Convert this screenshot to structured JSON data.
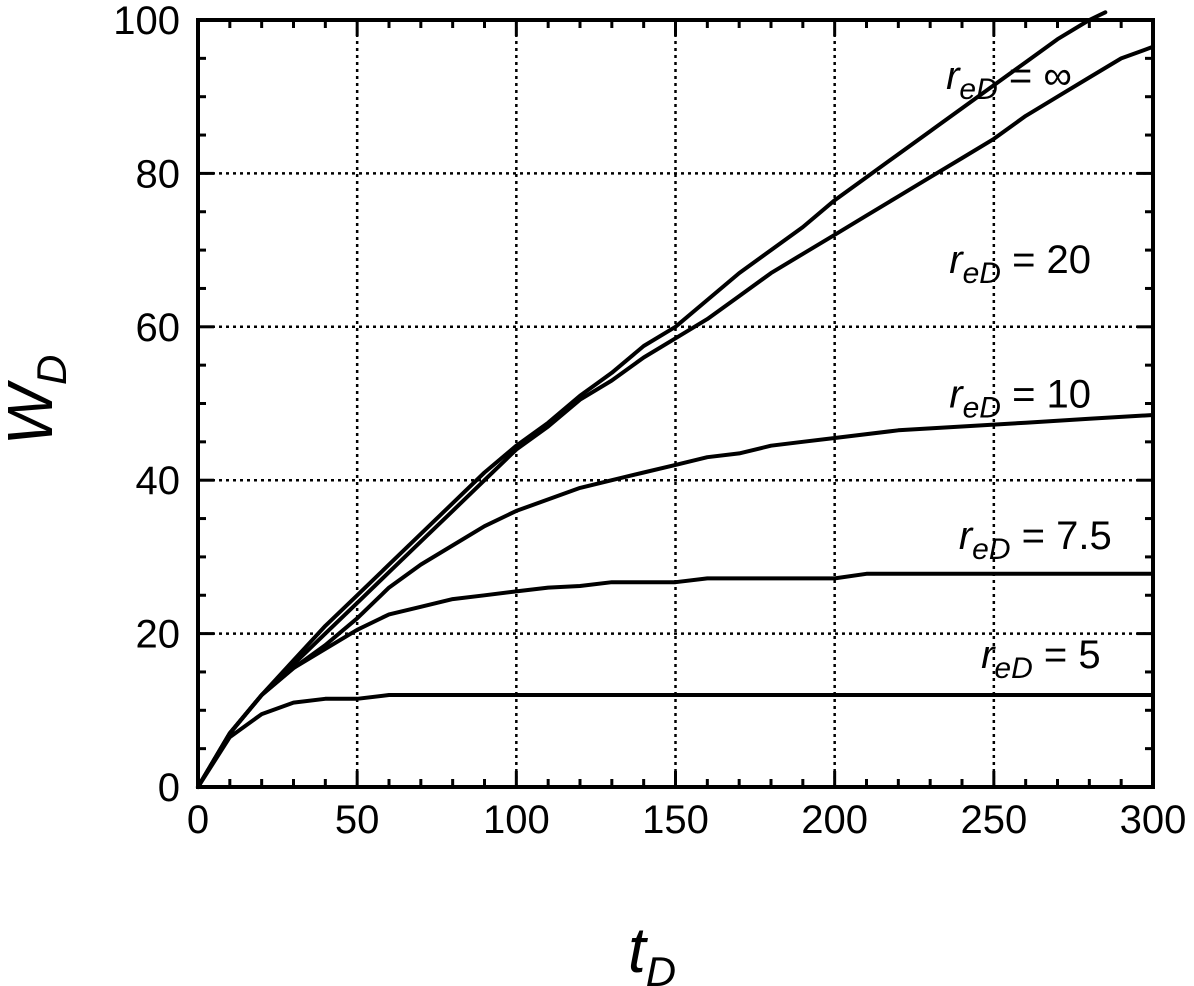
{
  "chart_data": {
    "type": "line",
    "xlabel": {
      "main": "t",
      "sub": "D"
    },
    "ylabel": {
      "main": "W",
      "sub": "D"
    },
    "xlim": [
      0,
      300
    ],
    "ylim": [
      0,
      100
    ],
    "xticks": [
      0,
      50,
      100,
      150,
      200,
      250,
      300
    ],
    "yticks": [
      0,
      20,
      40,
      60,
      80,
      100
    ],
    "grid": true,
    "line_color": "#000000",
    "series": [
      {
        "name": "r_eD = ∞",
        "label": {
          "var": "r",
          "sub": "eD",
          "op": " = ",
          "val": "∞"
        },
        "x": [
          0,
          10,
          20,
          30,
          40,
          50,
          60,
          70,
          80,
          90,
          100,
          110,
          120,
          130,
          140,
          150,
          160,
          170,
          180,
          190,
          200,
          210,
          220,
          230,
          240,
          250,
          260,
          270,
          280,
          285
        ],
        "y": [
          0,
          7,
          12,
          16.5,
          21,
          25,
          29,
          33,
          37,
          41,
          44.5,
          47.5,
          51,
          54,
          57.5,
          60,
          63.5,
          67,
          70,
          73,
          76.5,
          79.5,
          82.5,
          85.5,
          88.5,
          91.5,
          94.5,
          97.5,
          100,
          101
        ]
      },
      {
        "name": "r_eD = 20",
        "label": {
          "var": "r",
          "sub": "eD",
          "op": " = ",
          "val": "20"
        },
        "x": [
          0,
          10,
          20,
          30,
          40,
          50,
          60,
          70,
          80,
          90,
          100,
          110,
          120,
          130,
          140,
          150,
          160,
          170,
          180,
          190,
          200,
          210,
          220,
          230,
          240,
          250,
          260,
          270,
          280,
          290,
          300
        ],
        "y": [
          0,
          7,
          12,
          16,
          20,
          24,
          28,
          32,
          36,
          40,
          44,
          47,
          50.5,
          53,
          56,
          58.5,
          61,
          64,
          67,
          69.5,
          72,
          74.5,
          77,
          79.5,
          82,
          84.5,
          87.5,
          90,
          92.5,
          95,
          96.5
        ]
      },
      {
        "name": "r_eD = 10",
        "label": {
          "var": "r",
          "sub": "eD",
          "op": " = ",
          "val": "10"
        },
        "x": [
          0,
          10,
          20,
          30,
          40,
          50,
          60,
          70,
          80,
          90,
          100,
          110,
          120,
          130,
          140,
          150,
          160,
          170,
          180,
          190,
          200,
          220,
          240,
          260,
          280,
          300
        ],
        "y": [
          0,
          7,
          12,
          15.5,
          18.5,
          22,
          26,
          29,
          31.5,
          34,
          36,
          37.5,
          39,
          40,
          41,
          42,
          43,
          43.5,
          44.5,
          45,
          45.5,
          46.5,
          47,
          47.5,
          48,
          48.5
        ]
      },
      {
        "name": "r_eD = 7.5",
        "label": {
          "var": "r",
          "sub": "eD",
          "op": " = ",
          "val": "7.5"
        },
        "x": [
          0,
          10,
          20,
          30,
          40,
          50,
          60,
          70,
          80,
          90,
          100,
          110,
          120,
          130,
          150,
          160,
          200,
          210,
          300
        ],
        "y": [
          0,
          7,
          12,
          15.5,
          18,
          20.5,
          22.5,
          23.5,
          24.5,
          25,
          25.5,
          26,
          26.2,
          26.7,
          26.7,
          27.2,
          27.2,
          27.8,
          27.8
        ]
      },
      {
        "name": "r_eD = 5",
        "label": {
          "var": "r",
          "sub": "eD",
          "op": " = ",
          "val": "5"
        },
        "x": [
          0,
          10,
          20,
          30,
          40,
          50,
          60,
          300
        ],
        "y": [
          0,
          6.5,
          9.5,
          11,
          11.5,
          11.5,
          12,
          12
        ]
      }
    ]
  }
}
